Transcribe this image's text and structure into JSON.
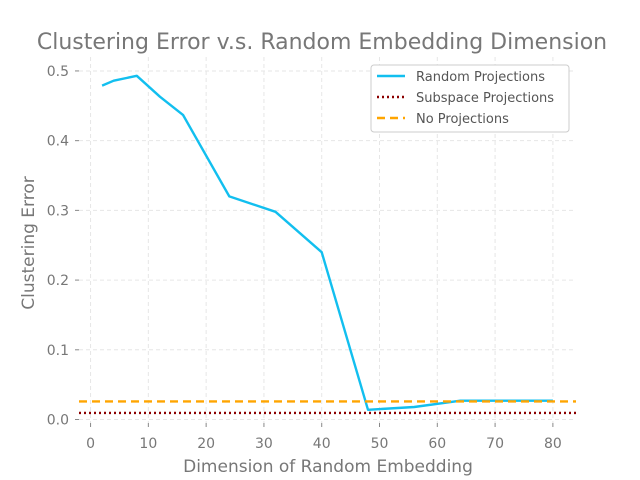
{
  "chart_data": {
    "type": "line",
    "title": "Clustering Error v.s. Random Embedding Dimension",
    "xlabel": "Dimension of Random Embedding",
    "ylabel": "Clustering Error",
    "xlim": [
      -2,
      84
    ],
    "ylim": [
      -0.005,
      0.52
    ],
    "xticks": [
      0,
      10,
      20,
      30,
      40,
      50,
      60,
      70,
      80
    ],
    "yticks": [
      0.0,
      0.1,
      0.2,
      0.3,
      0.4,
      0.5
    ],
    "xtick_labels": [
      "0",
      "10",
      "20",
      "30",
      "40",
      "50",
      "60",
      "70",
      "80"
    ],
    "ytick_labels": [
      "0.0",
      "0.1",
      "0.2",
      "0.3",
      "0.4",
      "0.5"
    ],
    "grid": true,
    "legend_position": "top-right",
    "series": [
      {
        "name": "Random Projections",
        "color": "#12bfef",
        "style": "solid",
        "x": [
          2,
          4,
          8,
          12,
          16,
          24,
          32,
          40,
          48,
          56,
          64,
          72,
          80
        ],
        "y": [
          0.479,
          0.486,
          0.493,
          0.463,
          0.437,
          0.32,
          0.298,
          0.24,
          0.014,
          0.018,
          0.027,
          0.027,
          0.027
        ]
      },
      {
        "name": "Subspace Projections",
        "color": "#8b0000",
        "style": "dotted",
        "x": [
          -2,
          84
        ],
        "y": [
          0.0095,
          0.0095
        ]
      },
      {
        "name": "No Projections",
        "color": "#ffa500",
        "style": "dashed",
        "x": [
          -2,
          84
        ],
        "y": [
          0.026,
          0.026
        ]
      }
    ]
  }
}
